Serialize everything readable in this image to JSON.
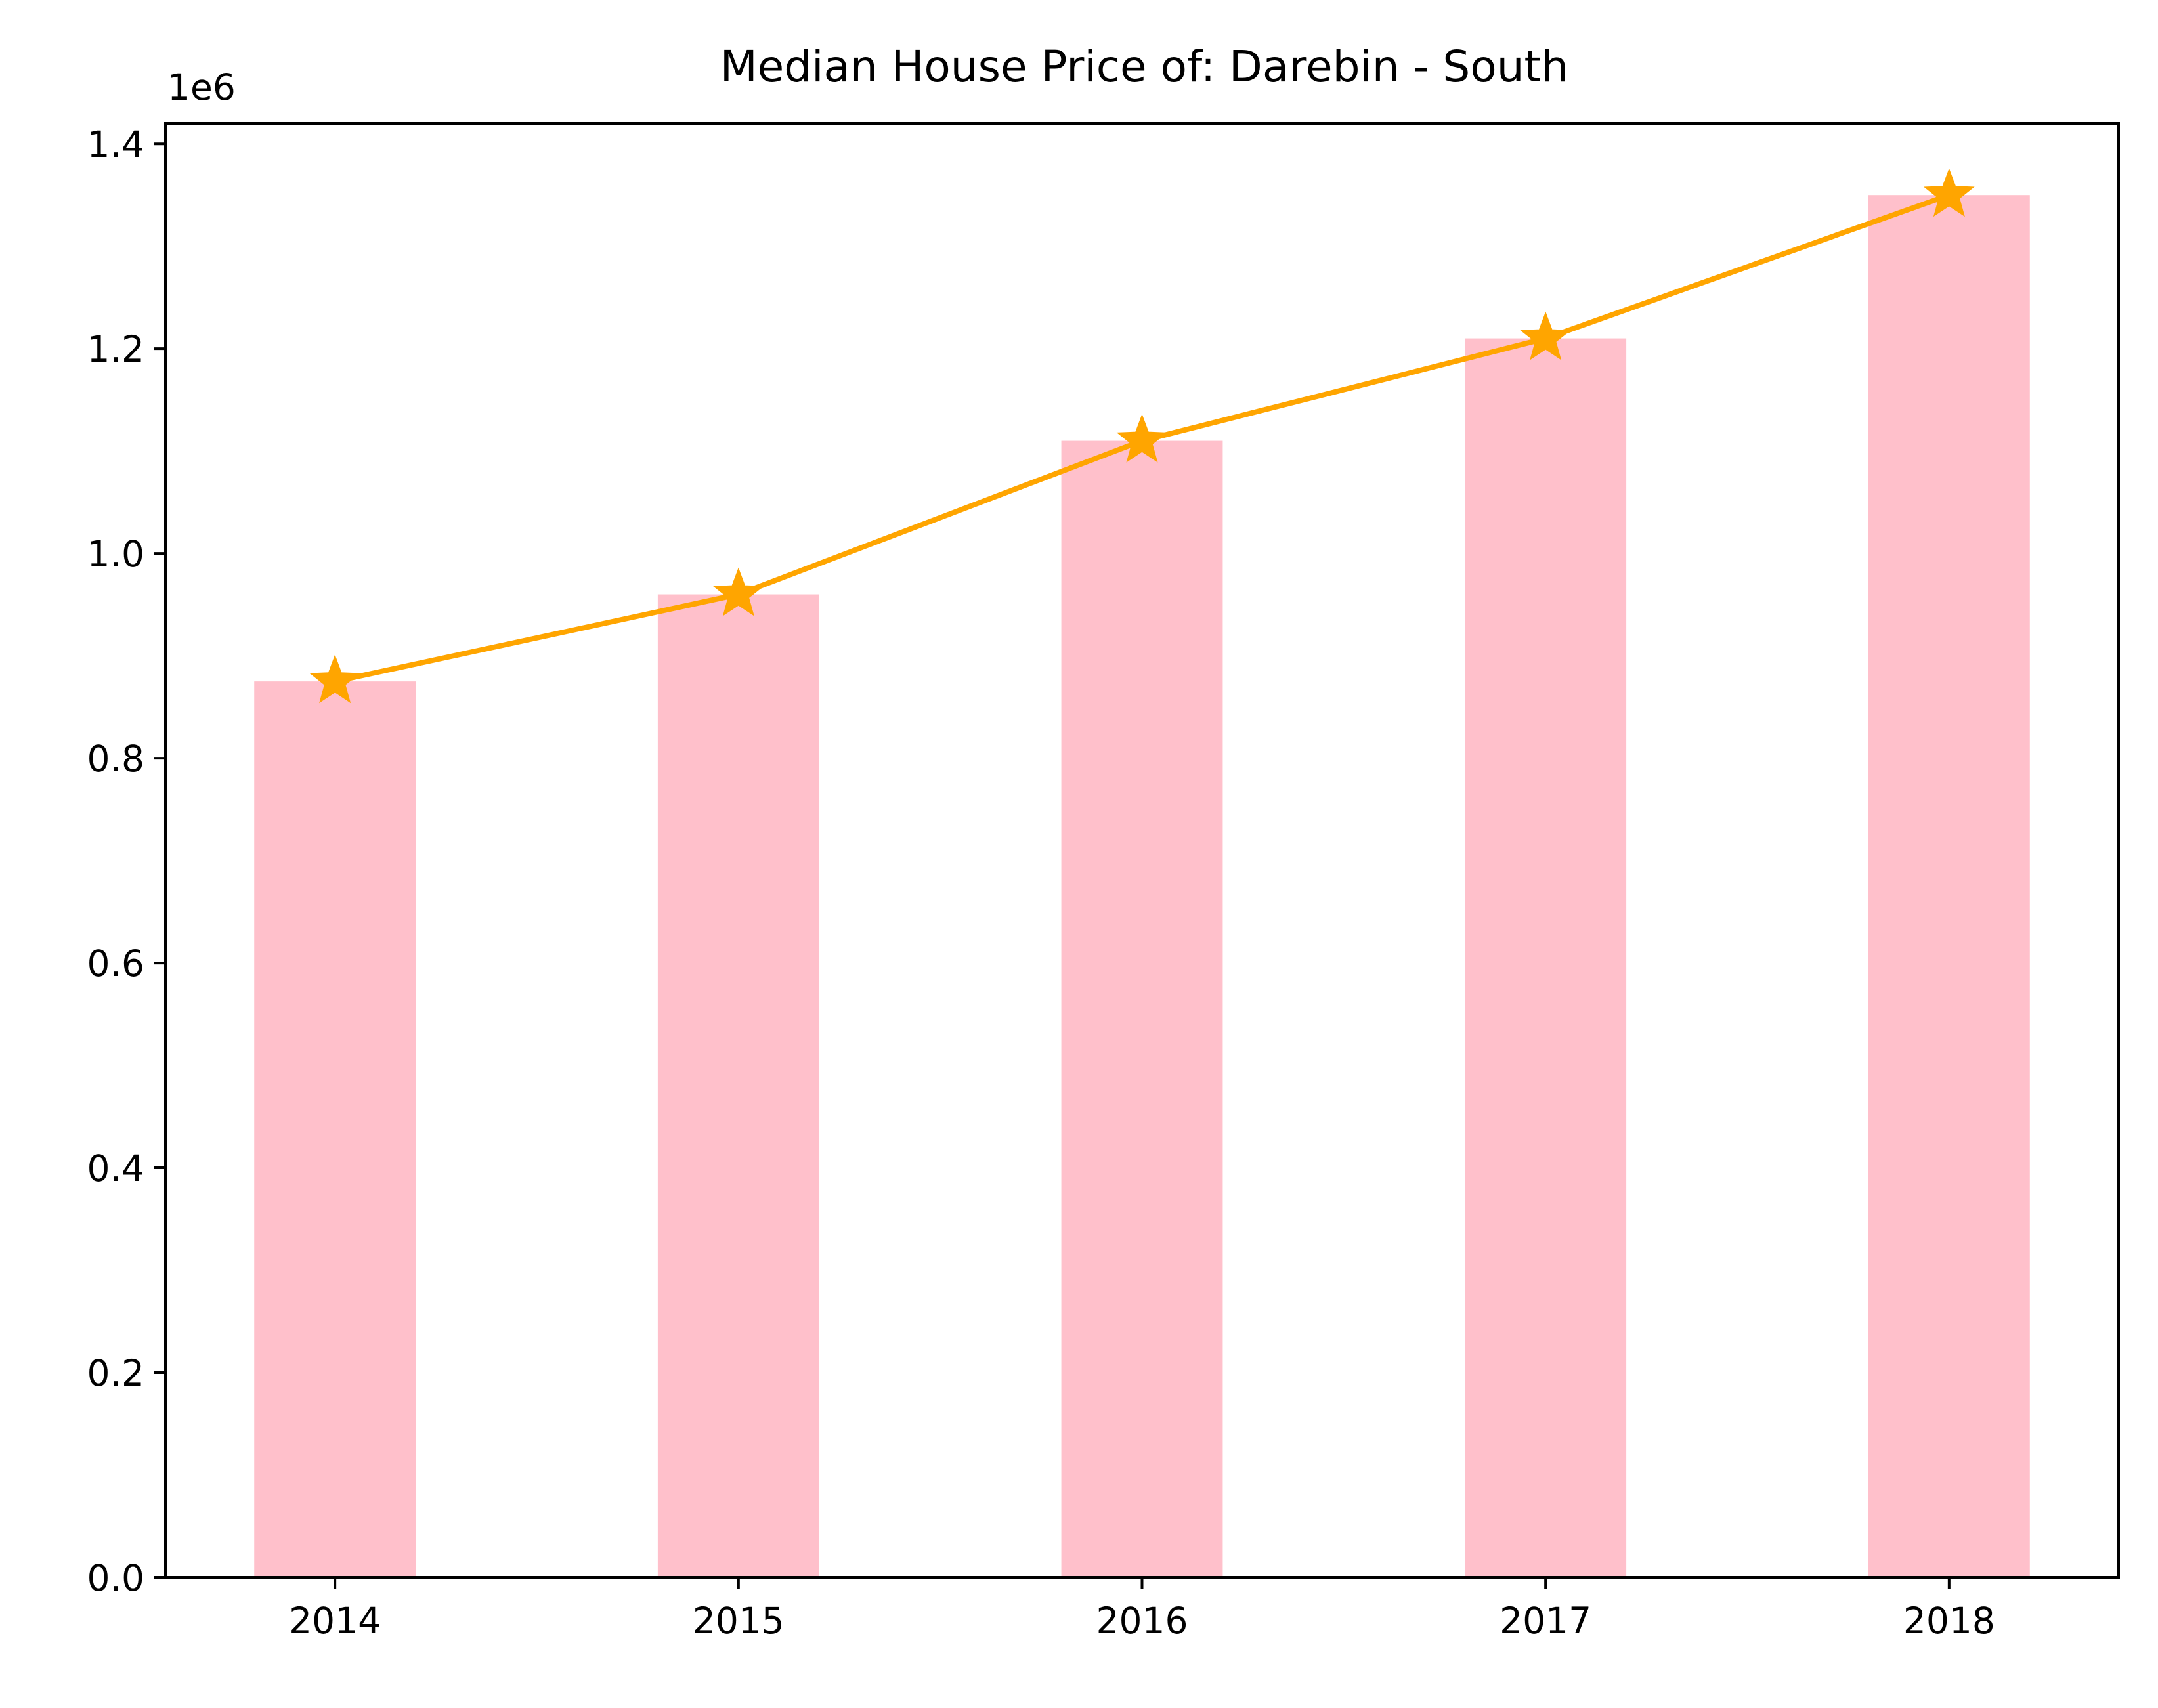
{
  "chart_data": {
    "type": "bar",
    "title": "Median House Price of: Darebin - South",
    "xlabel": "",
    "ylabel": "",
    "y_offset_label": "1e6",
    "categories": [
      "2014",
      "2015",
      "2016",
      "2017",
      "2018"
    ],
    "ylim": [
      0,
      1.42
    ],
    "yticks": [
      "0.0",
      "0.2",
      "0.4",
      "0.6",
      "0.8",
      "1.0",
      "1.2",
      "1.4"
    ],
    "grid": false,
    "series": [
      {
        "type": "bar",
        "values": [
          0.875,
          0.96,
          1.11,
          1.21,
          1.35
        ],
        "color": "#ffc0cb"
      },
      {
        "type": "line",
        "marker": "star",
        "values": [
          0.875,
          0.96,
          1.11,
          1.21,
          1.35
        ],
        "color": "#ffa500"
      }
    ]
  }
}
